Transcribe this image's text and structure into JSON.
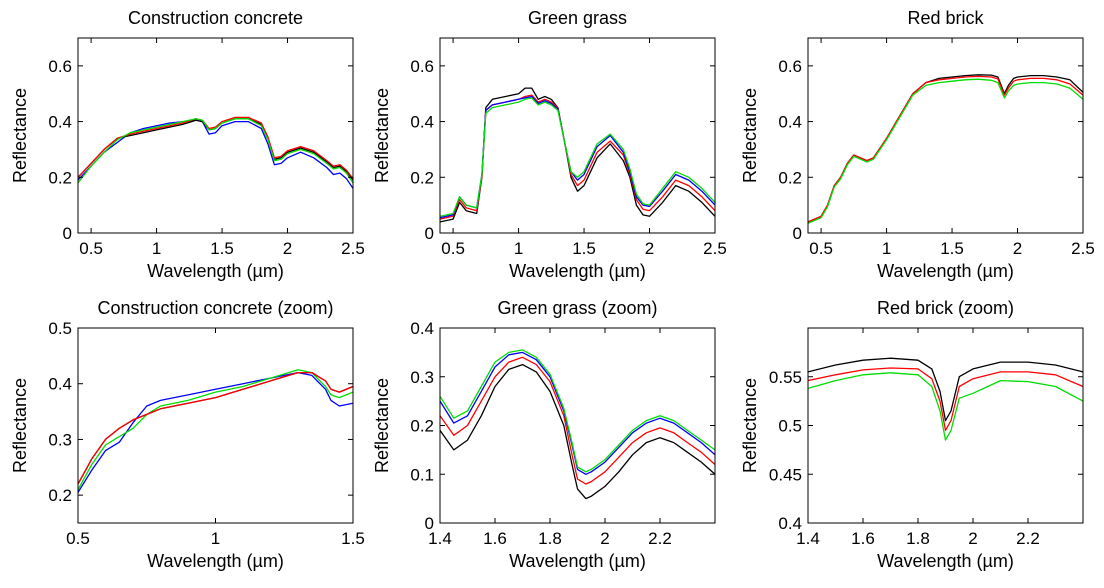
{
  "chart_data": [
    {
      "type": "line",
      "title": "Construction concrete",
      "xlabel": "Wavelength (µm)",
      "ylabel": "Reflectance",
      "xlim": [
        0.4,
        2.5
      ],
      "ylim": [
        0,
        0.7
      ],
      "xticks": [
        0.5,
        1,
        1.5,
        2,
        2.5
      ],
      "xtick_labels": [
        "0.5",
        "1",
        "1.5",
        "2",
        "2.5"
      ],
      "yticks": [
        0,
        0.2,
        0.4,
        0.6
      ],
      "ytick_labels": [
        "0",
        "0.2",
        "0.4",
        "0.6"
      ],
      "colors": {
        "black": "#000000",
        "red": "#ff0000",
        "blue": "#0000ff",
        "green": "#00dd00"
      },
      "x": [
        0.4,
        0.5,
        0.6,
        0.7,
        0.8,
        0.9,
        1.0,
        1.1,
        1.2,
        1.3,
        1.35,
        1.4,
        1.45,
        1.5,
        1.6,
        1.7,
        1.8,
        1.85,
        1.9,
        1.95,
        2.0,
        2.1,
        2.2,
        2.3,
        2.35,
        2.4,
        2.45,
        2.5
      ],
      "series": [
        {
          "color": "blue",
          "values": [
            0.19,
            0.24,
            0.29,
            0.325,
            0.36,
            0.375,
            0.385,
            0.395,
            0.4,
            0.405,
            0.4,
            0.355,
            0.36,
            0.385,
            0.4,
            0.4,
            0.375,
            0.32,
            0.245,
            0.25,
            0.27,
            0.29,
            0.27,
            0.235,
            0.21,
            0.215,
            0.195,
            0.16
          ]
        },
        {
          "color": "black",
          "values": [
            0.2,
            0.25,
            0.3,
            0.34,
            0.35,
            0.36,
            0.37,
            0.38,
            0.39,
            0.405,
            0.4,
            0.37,
            0.375,
            0.395,
            0.41,
            0.41,
            0.39,
            0.34,
            0.265,
            0.27,
            0.29,
            0.305,
            0.29,
            0.255,
            0.235,
            0.24,
            0.22,
            0.19
          ]
        },
        {
          "color": "red",
          "values": [
            0.2,
            0.25,
            0.3,
            0.34,
            0.355,
            0.365,
            0.375,
            0.385,
            0.395,
            0.41,
            0.405,
            0.375,
            0.38,
            0.4,
            0.415,
            0.415,
            0.395,
            0.345,
            0.27,
            0.275,
            0.295,
            0.31,
            0.295,
            0.26,
            0.24,
            0.245,
            0.225,
            0.195
          ]
        },
        {
          "color": "green",
          "values": [
            0.18,
            0.24,
            0.29,
            0.335,
            0.36,
            0.37,
            0.38,
            0.39,
            0.4,
            0.41,
            0.405,
            0.37,
            0.375,
            0.395,
            0.41,
            0.41,
            0.385,
            0.335,
            0.26,
            0.265,
            0.285,
            0.3,
            0.285,
            0.25,
            0.23,
            0.235,
            0.215,
            0.18
          ]
        }
      ]
    },
    {
      "type": "line",
      "title": "Green grass",
      "xlabel": "Wavelength (µm)",
      "ylabel": "Reflectance",
      "xlim": [
        0.4,
        2.5
      ],
      "ylim": [
        0,
        0.7
      ],
      "xticks": [
        0.5,
        1,
        1.5,
        2,
        2.5
      ],
      "xtick_labels": [
        "0.5",
        "1",
        "1.5",
        "2",
        "2.5"
      ],
      "yticks": [
        0,
        0.2,
        0.4,
        0.6
      ],
      "ytick_labels": [
        "0",
        "0.2",
        "0.4",
        "0.6"
      ],
      "colors": {
        "black": "#000000",
        "red": "#ff0000",
        "blue": "#0000ff",
        "green": "#00dd00"
      },
      "x": [
        0.4,
        0.5,
        0.55,
        0.6,
        0.68,
        0.72,
        0.75,
        0.8,
        0.9,
        1.0,
        1.05,
        1.1,
        1.15,
        1.2,
        1.25,
        1.3,
        1.35,
        1.4,
        1.45,
        1.5,
        1.6,
        1.7,
        1.8,
        1.85,
        1.9,
        1.95,
        2.0,
        2.1,
        2.2,
        2.3,
        2.4,
        2.5
      ],
      "series": [
        {
          "color": "black",
          "values": [
            0.04,
            0.05,
            0.11,
            0.08,
            0.07,
            0.2,
            0.45,
            0.48,
            0.49,
            0.5,
            0.52,
            0.52,
            0.48,
            0.49,
            0.48,
            0.45,
            0.33,
            0.2,
            0.15,
            0.17,
            0.27,
            0.32,
            0.26,
            0.2,
            0.1,
            0.065,
            0.06,
            0.11,
            0.17,
            0.15,
            0.11,
            0.06
          ]
        },
        {
          "color": "red",
          "values": [
            0.05,
            0.06,
            0.12,
            0.09,
            0.08,
            0.2,
            0.44,
            0.46,
            0.47,
            0.48,
            0.49,
            0.495,
            0.47,
            0.48,
            0.47,
            0.45,
            0.33,
            0.21,
            0.17,
            0.19,
            0.29,
            0.33,
            0.28,
            0.21,
            0.12,
            0.085,
            0.08,
            0.13,
            0.19,
            0.17,
            0.13,
            0.08
          ]
        },
        {
          "color": "blue",
          "values": [
            0.055,
            0.065,
            0.13,
            0.1,
            0.09,
            0.21,
            0.44,
            0.46,
            0.47,
            0.48,
            0.485,
            0.49,
            0.465,
            0.475,
            0.465,
            0.445,
            0.33,
            0.22,
            0.19,
            0.21,
            0.31,
            0.35,
            0.29,
            0.22,
            0.13,
            0.1,
            0.095,
            0.15,
            0.21,
            0.19,
            0.15,
            0.1
          ]
        },
        {
          "color": "green",
          "values": [
            0.06,
            0.07,
            0.13,
            0.1,
            0.09,
            0.21,
            0.43,
            0.45,
            0.46,
            0.47,
            0.48,
            0.485,
            0.46,
            0.47,
            0.46,
            0.44,
            0.33,
            0.22,
            0.2,
            0.22,
            0.32,
            0.355,
            0.3,
            0.23,
            0.14,
            0.105,
            0.1,
            0.16,
            0.22,
            0.2,
            0.16,
            0.11
          ]
        }
      ]
    },
    {
      "type": "line",
      "title": "Red brick",
      "xlabel": "Wavelength (µm)",
      "ylabel": "Reflectance",
      "xlim": [
        0.4,
        2.5
      ],
      "ylim": [
        0,
        0.7
      ],
      "xticks": [
        0.5,
        1,
        1.5,
        2,
        2.5
      ],
      "xtick_labels": [
        "0.5",
        "1",
        "1.5",
        "2",
        "2.5"
      ],
      "yticks": [
        0,
        0.2,
        0.4,
        0.6
      ],
      "ytick_labels": [
        "0",
        "0.2",
        "0.4",
        "0.6"
      ],
      "colors": {
        "black": "#000000",
        "red": "#ff0000",
        "blue": "#0000ff",
        "green": "#00dd00"
      },
      "x": [
        0.4,
        0.5,
        0.55,
        0.6,
        0.65,
        0.7,
        0.75,
        0.8,
        0.85,
        0.9,
        1.0,
        1.1,
        1.2,
        1.3,
        1.4,
        1.5,
        1.6,
        1.7,
        1.8,
        1.85,
        1.9,
        1.93,
        1.97,
        2.0,
        2.1,
        2.2,
        2.3,
        2.4,
        2.5
      ],
      "series": [
        {
          "color": "black",
          "values": [
            0.04,
            0.06,
            0.1,
            0.17,
            0.2,
            0.25,
            0.28,
            0.27,
            0.26,
            0.27,
            0.34,
            0.42,
            0.5,
            0.54,
            0.555,
            0.56,
            0.565,
            0.568,
            0.567,
            0.56,
            0.5,
            0.53,
            0.555,
            0.56,
            0.565,
            0.565,
            0.56,
            0.55,
            0.505
          ]
        },
        {
          "color": "red",
          "values": [
            0.04,
            0.06,
            0.1,
            0.17,
            0.2,
            0.25,
            0.28,
            0.27,
            0.26,
            0.27,
            0.34,
            0.42,
            0.5,
            0.54,
            0.55,
            0.555,
            0.56,
            0.562,
            0.56,
            0.553,
            0.495,
            0.52,
            0.545,
            0.55,
            0.555,
            0.555,
            0.55,
            0.535,
            0.495
          ]
        },
        {
          "color": "green",
          "values": [
            0.035,
            0.055,
            0.095,
            0.165,
            0.195,
            0.245,
            0.275,
            0.265,
            0.255,
            0.265,
            0.335,
            0.415,
            0.495,
            0.53,
            0.54,
            0.545,
            0.55,
            0.552,
            0.548,
            0.54,
            0.485,
            0.51,
            0.53,
            0.535,
            0.54,
            0.54,
            0.535,
            0.52,
            0.48
          ]
        }
      ]
    },
    {
      "type": "line",
      "title": "Construction concrete (zoom)",
      "xlabel": "Wavelength (µm)",
      "ylabel": "Reflectance",
      "xlim": [
        0.5,
        1.5
      ],
      "ylim": [
        0.15,
        0.5
      ],
      "xticks": [
        0.5,
        1,
        1.5
      ],
      "xtick_labels": [
        "0.5",
        "1",
        "1.5"
      ],
      "yticks": [
        0.2,
        0.3,
        0.4,
        0.5
      ],
      "ytick_labels": [
        "0.2",
        "0.3",
        "0.4",
        "0.5"
      ],
      "colors": {
        "black": "#000000",
        "red": "#ff0000",
        "blue": "#0000ff",
        "green": "#00dd00"
      },
      "x": [
        0.5,
        0.55,
        0.6,
        0.65,
        0.7,
        0.75,
        0.8,
        0.9,
        1.0,
        1.1,
        1.2,
        1.3,
        1.35,
        1.4,
        1.42,
        1.45,
        1.5
      ],
      "series": [
        {
          "color": "blue",
          "values": [
            0.205,
            0.245,
            0.28,
            0.295,
            0.33,
            0.36,
            0.37,
            0.38,
            0.39,
            0.4,
            0.41,
            0.42,
            0.415,
            0.39,
            0.37,
            0.36,
            0.365
          ]
        },
        {
          "color": "green",
          "values": [
            0.21,
            0.255,
            0.29,
            0.305,
            0.32,
            0.345,
            0.36,
            0.37,
            0.385,
            0.395,
            0.41,
            0.425,
            0.42,
            0.395,
            0.38,
            0.375,
            0.385
          ]
        },
        {
          "color": "black",
          "values": [
            0.22,
            0.265,
            0.3,
            0.32,
            0.335,
            0.345,
            0.355,
            0.365,
            0.375,
            0.39,
            0.405,
            0.42,
            0.42,
            0.405,
            0.39,
            0.385,
            0.395
          ]
        },
        {
          "color": "red",
          "values": [
            0.22,
            0.265,
            0.3,
            0.32,
            0.335,
            0.345,
            0.355,
            0.365,
            0.375,
            0.39,
            0.405,
            0.42,
            0.42,
            0.405,
            0.39,
            0.385,
            0.395
          ]
        }
      ]
    },
    {
      "type": "line",
      "title": "Green grass (zoom)",
      "xlabel": "Wavelength (µm)",
      "ylabel": "Reflectance",
      "xlim": [
        1.4,
        2.4
      ],
      "ylim": [
        0,
        0.4
      ],
      "xticks": [
        1.4,
        1.6,
        1.8,
        2,
        2.2
      ],
      "xtick_labels": [
        "1.4",
        "1.6",
        "1.8",
        "2",
        "2.2"
      ],
      "yticks": [
        0,
        0.1,
        0.2,
        0.3,
        0.4
      ],
      "ytick_labels": [
        "0",
        "0.1",
        "0.2",
        "0.3",
        "0.4"
      ],
      "colors": {
        "black": "#000000",
        "red": "#ff0000",
        "blue": "#0000ff",
        "green": "#00dd00"
      },
      "x": [
        1.4,
        1.45,
        1.5,
        1.55,
        1.6,
        1.65,
        1.7,
        1.75,
        1.8,
        1.85,
        1.88,
        1.9,
        1.93,
        1.95,
        2.0,
        2.05,
        2.1,
        2.15,
        2.2,
        2.25,
        2.3,
        2.35,
        2.4
      ],
      "series": [
        {
          "color": "black",
          "values": [
            0.19,
            0.15,
            0.17,
            0.22,
            0.28,
            0.315,
            0.325,
            0.31,
            0.27,
            0.2,
            0.12,
            0.07,
            0.05,
            0.055,
            0.075,
            0.105,
            0.14,
            0.165,
            0.175,
            0.165,
            0.145,
            0.125,
            0.1
          ]
        },
        {
          "color": "red",
          "values": [
            0.22,
            0.18,
            0.2,
            0.25,
            0.3,
            0.33,
            0.34,
            0.325,
            0.29,
            0.22,
            0.14,
            0.09,
            0.08,
            0.085,
            0.105,
            0.135,
            0.165,
            0.185,
            0.195,
            0.185,
            0.165,
            0.145,
            0.12
          ]
        },
        {
          "color": "blue",
          "values": [
            0.25,
            0.205,
            0.22,
            0.27,
            0.32,
            0.345,
            0.35,
            0.335,
            0.3,
            0.23,
            0.16,
            0.11,
            0.1,
            0.105,
            0.125,
            0.155,
            0.185,
            0.205,
            0.215,
            0.205,
            0.185,
            0.165,
            0.14
          ]
        },
        {
          "color": "green",
          "values": [
            0.26,
            0.215,
            0.23,
            0.28,
            0.33,
            0.35,
            0.355,
            0.34,
            0.305,
            0.235,
            0.165,
            0.115,
            0.105,
            0.11,
            0.13,
            0.16,
            0.19,
            0.21,
            0.22,
            0.21,
            0.19,
            0.17,
            0.15
          ]
        }
      ]
    },
    {
      "type": "line",
      "title": "Red brick (zoom)",
      "xlabel": "Wavelength (µm)",
      "ylabel": "Reflectance",
      "xlim": [
        1.4,
        2.4
      ],
      "ylim": [
        0.4,
        0.6
      ],
      "xticks": [
        1.4,
        1.6,
        1.8,
        2,
        2.2
      ],
      "xtick_labels": [
        "1.4",
        "1.6",
        "1.8",
        "2",
        "2.2"
      ],
      "yticks": [
        0.4,
        0.45,
        0.5,
        0.55
      ],
      "ytick_labels": [
        "0.4",
        "0.45",
        "0.5",
        "0.55"
      ],
      "colors": {
        "black": "#000000",
        "red": "#ff0000",
        "blue": "#0000ff",
        "green": "#00dd00"
      },
      "x": [
        1.4,
        1.5,
        1.6,
        1.7,
        1.8,
        1.85,
        1.88,
        1.9,
        1.92,
        1.95,
        2.0,
        2.1,
        2.2,
        2.3,
        2.4
      ],
      "series": [
        {
          "color": "black",
          "values": [
            0.555,
            0.562,
            0.567,
            0.569,
            0.567,
            0.558,
            0.535,
            0.505,
            0.515,
            0.55,
            0.558,
            0.565,
            0.565,
            0.562,
            0.555
          ]
        },
        {
          "color": "red",
          "values": [
            0.546,
            0.552,
            0.557,
            0.559,
            0.558,
            0.548,
            0.525,
            0.495,
            0.505,
            0.54,
            0.548,
            0.555,
            0.555,
            0.552,
            0.54
          ]
        },
        {
          "color": "green",
          "values": [
            0.538,
            0.546,
            0.552,
            0.554,
            0.552,
            0.54,
            0.515,
            0.485,
            0.495,
            0.528,
            0.533,
            0.546,
            0.545,
            0.54,
            0.525
          ]
        }
      ]
    }
  ]
}
